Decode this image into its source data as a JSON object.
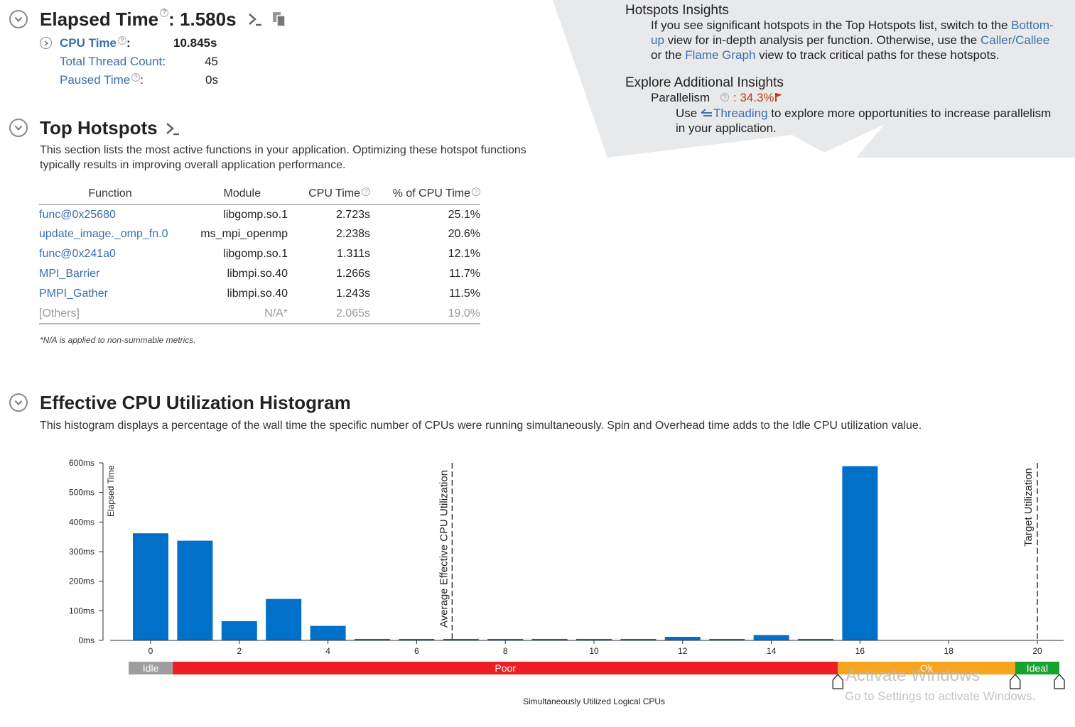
{
  "summary": {
    "elapsed_label": "Elapsed Time",
    "elapsed_value": ": 1.580s",
    "cpu_time_label": "CPU Time",
    "cpu_time_colon": ":",
    "cpu_time_value": "10.845s",
    "thread_count_label": "Total Thread Count",
    "thread_count_colon": ":",
    "thread_count_value": "45",
    "paused_label": "Paused Time",
    "paused_colon": ":",
    "paused_value": "0s"
  },
  "hotspots": {
    "title": "Top Hotspots",
    "description_line1": "This section lists the most active functions in your application. Optimizing these hotspot functions",
    "description_line2": "typically results in improving overall application performance.",
    "columns": {
      "function": "Function",
      "module": "Module",
      "cpu_time": "CPU Time",
      "pct": "% of CPU Time"
    },
    "rows": [
      {
        "function": "func@0x25680",
        "module": "libgomp.so.1",
        "cpu_time": "2.723s",
        "pct": "25.1%"
      },
      {
        "function": "update_image._omp_fn.0",
        "module": "ms_mpi_openmp",
        "cpu_time": "2.238s",
        "pct": "20.6%"
      },
      {
        "function": "func@0x241a0",
        "module": "libgomp.so.1",
        "cpu_time": "1.311s",
        "pct": "12.1%"
      },
      {
        "function": "MPI_Barrier",
        "module": "libmpi.so.40",
        "cpu_time": "1.266s",
        "pct": "11.7%"
      },
      {
        "function": "PMPI_Gather",
        "module": "libmpi.so.40",
        "cpu_time": "1.243s",
        "pct": "11.5%"
      },
      {
        "function": "[Others]",
        "module": "N/A*",
        "cpu_time": "2.065s",
        "pct": "19.0%"
      }
    ],
    "footnote": "*N/A is applied to non-summable metrics."
  },
  "insights": {
    "hotspots_title": "Hotspots Insights",
    "hotspots_text1": "If you see significant hotspots in the Top Hotspots list, switch to the",
    "bottom_up_link_a": "Bottom-",
    "bottom_up_link_b": "up",
    "hotspots_text2": "view for in-depth analysis per function. Otherwise, use the",
    "caller_callee_link": "Caller/Callee",
    "hotspots_text3": "or the",
    "flame_graph_link": "Flame Graph",
    "hotspots_text4": "view to track critical paths for these hotspots.",
    "explore_title": "Explore Additional Insights",
    "parallelism_label": "Parallelism",
    "parallelism_value": ": 34.3%",
    "use_text": "Use",
    "threading_link": "Threading",
    "threading_text1": "to explore more opportunities to increase parallelism",
    "threading_text2": "in your application."
  },
  "histogram": {
    "title": "Effective CPU Utilization Histogram",
    "description": "This histogram displays a percentage of the wall time the specific number of CPUs were running simultaneously. Spin and Overhead time adds to the Idle CPU utilization value.",
    "xlabel": "Simultaneously Utilized Logical CPUs",
    "ylabel": "Elapsed Time",
    "avg_label": "Average Effective CPU Utilization",
    "target_label": "Target Utilization",
    "zones": {
      "idle": "Idle",
      "poor": "Poor",
      "ok": "Ok",
      "ideal": "Ideal"
    }
  },
  "chart_data": {
    "type": "bar",
    "title": "",
    "xlabel": "Simultaneously Utilized Logical CPUs",
    "ylabel": "Elapsed Time",
    "y_unit": "ms",
    "ylim": [
      0,
      600
    ],
    "yticks": [
      "0ms",
      "100ms",
      "200ms",
      "300ms",
      "400ms",
      "500ms",
      "600ms"
    ],
    "xticks": [
      "0",
      "2",
      "4",
      "6",
      "8",
      "10",
      "12",
      "14",
      "16",
      "18",
      "20"
    ],
    "categories": [
      0,
      1,
      2,
      3,
      4,
      5,
      6,
      7,
      8,
      9,
      10,
      11,
      12,
      13,
      14,
      15,
      16,
      17,
      18,
      19,
      20
    ],
    "values": [
      362,
      337,
      65,
      140,
      49,
      5,
      5,
      5,
      5,
      5,
      5,
      5,
      12,
      5,
      18,
      5,
      589,
      0,
      0,
      0,
      0
    ],
    "average_utilization": 6.8,
    "target_utilization": 20,
    "zones": [
      {
        "name": "Idle",
        "from": -0.5,
        "to": 0.5,
        "color": "#9e9e9e"
      },
      {
        "name": "Poor",
        "from": 0.5,
        "to": 15.5,
        "color": "#ee1d23"
      },
      {
        "name": "Ok",
        "from": 15.5,
        "to": 19.5,
        "color": "#f7a51f"
      },
      {
        "name": "Ideal",
        "from": 19.5,
        "to": 20.5,
        "color": "#18a22f"
      }
    ],
    "bar_color": "#0070c8",
    "grid": false
  },
  "watermark": {
    "line1": "Activate Windows",
    "line2": "Go to Settings to activate Windows."
  }
}
